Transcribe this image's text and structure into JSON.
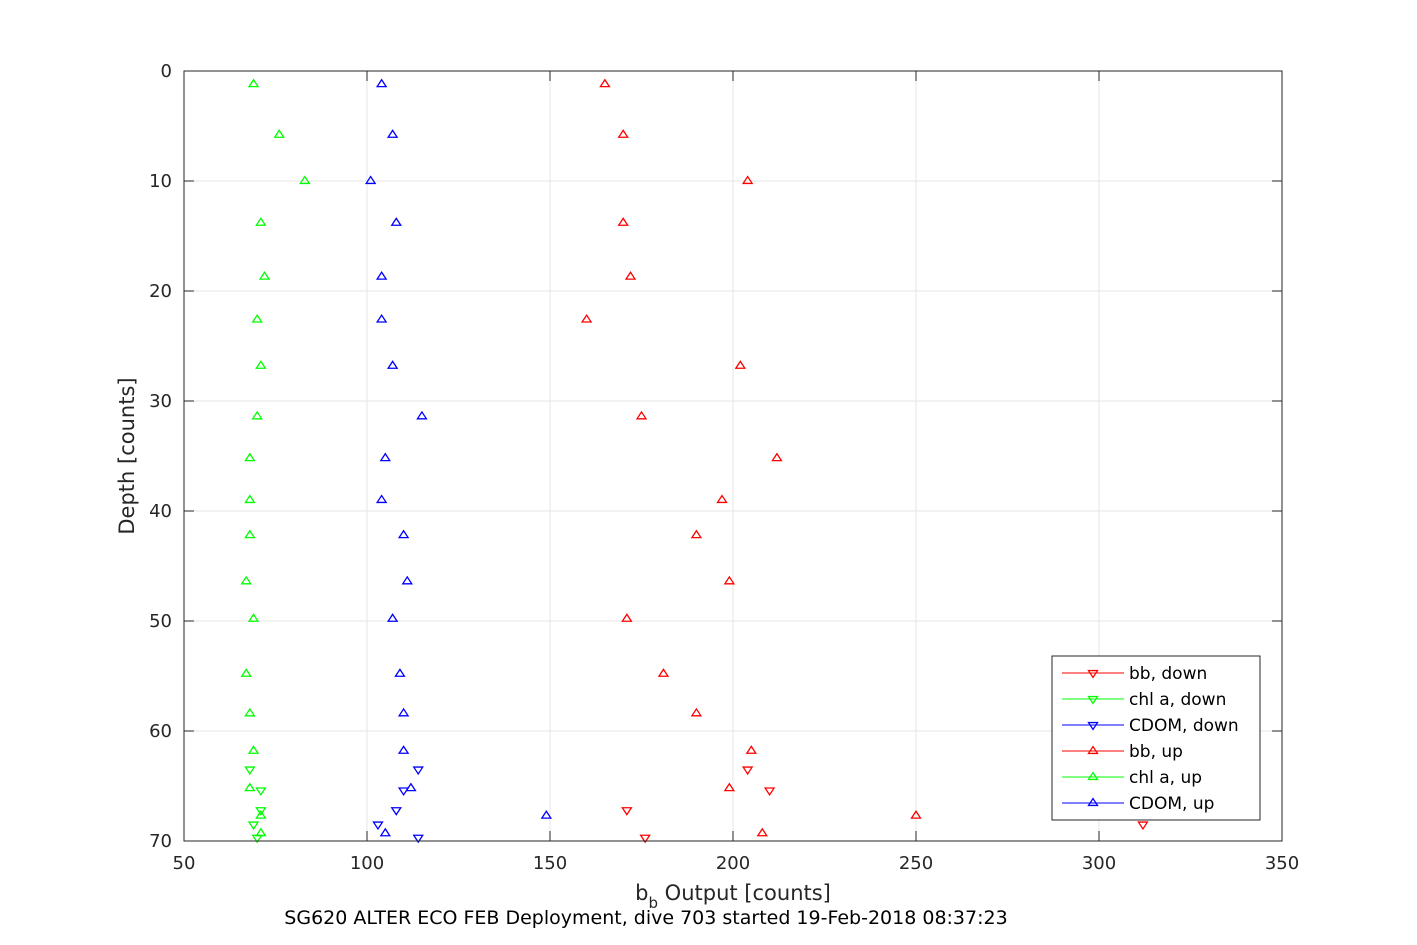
{
  "chart_data": {
    "type": "scatter",
    "title": "",
    "xlabel_main": "b",
    "xlabel_sub": "b",
    "xlabel_rest": " Output [counts]",
    "ylabel": "Depth [counts]",
    "caption": "SG620 ALTER ECO FEB Deployment, dive 703 started 19-Feb-2018 08:37:23",
    "xlim": [
      50,
      350
    ],
    "ylim": [
      0,
      70
    ],
    "y_reversed": true,
    "grid": true,
    "legend_position": "bottom-right",
    "xticks": [
      50,
      100,
      150,
      200,
      250,
      300,
      350
    ],
    "yticks": [
      0,
      10,
      20,
      30,
      40,
      50,
      60,
      70
    ],
    "series": [
      {
        "name": "bb, down",
        "color": "#ff0000",
        "marker": "triangle-down",
        "points": [
          [
            204,
            63.5
          ],
          [
            210,
            65.4
          ],
          [
            171,
            67.2
          ],
          [
            312,
            68.5
          ],
          [
            176,
            69.7
          ]
        ]
      },
      {
        "name": "chl a, down",
        "color": "#00ff00",
        "marker": "triangle-down",
        "points": [
          [
            68,
            63.5
          ],
          [
            71,
            65.4
          ],
          [
            71,
            67.2
          ],
          [
            69,
            68.5
          ],
          [
            70,
            69.7
          ]
        ]
      },
      {
        "name": "CDOM, down",
        "color": "#0000ff",
        "marker": "triangle-down",
        "points": [
          [
            114,
            63.5
          ],
          [
            110,
            65.4
          ],
          [
            108,
            67.2
          ],
          [
            103,
            68.5
          ],
          [
            114,
            69.7
          ]
        ]
      },
      {
        "name": "bb, up",
        "color": "#ff0000",
        "marker": "triangle-up",
        "points": [
          [
            165,
            1.2
          ],
          [
            170,
            5.8
          ],
          [
            204,
            10
          ],
          [
            170,
            13.8
          ],
          [
            172,
            18.7
          ],
          [
            160,
            22.6
          ],
          [
            202,
            26.8
          ],
          [
            175,
            31.4
          ],
          [
            212,
            35.2
          ],
          [
            197,
            39
          ],
          [
            190,
            42.2
          ],
          [
            199,
            46.4
          ],
          [
            171,
            49.8
          ],
          [
            181,
            54.8
          ],
          [
            190,
            58.4
          ],
          [
            205,
            61.8
          ],
          [
            199,
            65.2
          ],
          [
            250,
            67.7
          ],
          [
            208,
            69.3
          ]
        ]
      },
      {
        "name": "chl a, up",
        "color": "#00ff00",
        "marker": "triangle-up",
        "points": [
          [
            69,
            1.2
          ],
          [
            76,
            5.8
          ],
          [
            83,
            10
          ],
          [
            71,
            13.8
          ],
          [
            72,
            18.7
          ],
          [
            70,
            22.6
          ],
          [
            71,
            26.8
          ],
          [
            70,
            31.4
          ],
          [
            68,
            35.2
          ],
          [
            68,
            39
          ],
          [
            68,
            42.2
          ],
          [
            67,
            46.4
          ],
          [
            69,
            49.8
          ],
          [
            67,
            54.8
          ],
          [
            68,
            58.4
          ],
          [
            69,
            61.8
          ],
          [
            68,
            65.2
          ],
          [
            71,
            67.7
          ],
          [
            71,
            69.3
          ]
        ]
      },
      {
        "name": "CDOM, up",
        "color": "#0000ff",
        "marker": "triangle-up",
        "points": [
          [
            104,
            1.2
          ],
          [
            107,
            5.8
          ],
          [
            101,
            10
          ],
          [
            108,
            13.8
          ],
          [
            104,
            18.7
          ],
          [
            104,
            22.6
          ],
          [
            107,
            26.8
          ],
          [
            115,
            31.4
          ],
          [
            105,
            35.2
          ],
          [
            104,
            39
          ],
          [
            110,
            42.2
          ],
          [
            111,
            46.4
          ],
          [
            107,
            49.8
          ],
          [
            109,
            54.8
          ],
          [
            110,
            58.4
          ],
          [
            110,
            61.8
          ],
          [
            112,
            65.2
          ],
          [
            149,
            67.7
          ],
          [
            105,
            69.3
          ]
        ]
      }
    ]
  }
}
